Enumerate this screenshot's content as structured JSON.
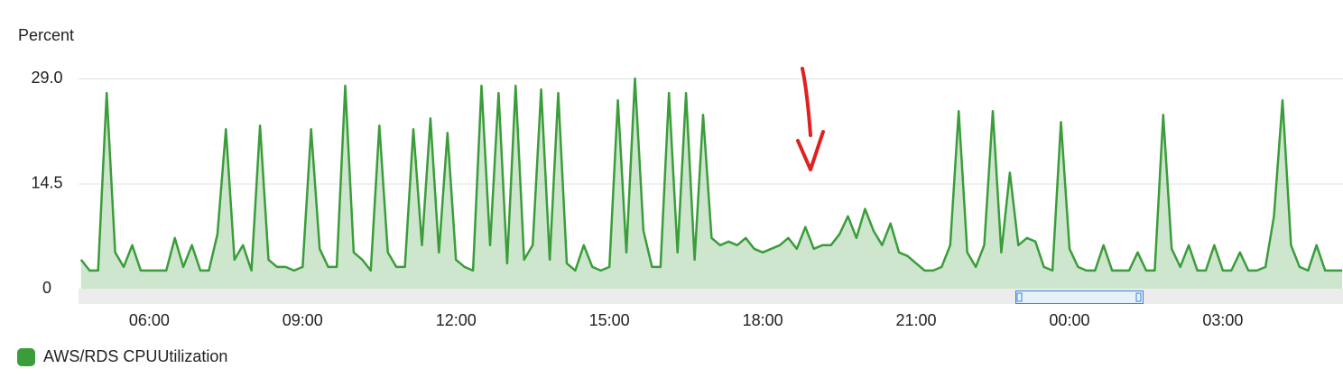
{
  "chart_data": {
    "type": "area",
    "y_label": "Percent",
    "xlim": [
      277,
      1761
    ],
    "xticks": [
      {
        "value": 360,
        "label": "06:00"
      },
      {
        "value": 540,
        "label": "09:00"
      },
      {
        "value": 720,
        "label": "12:00"
      },
      {
        "value": 900,
        "label": "15:00"
      },
      {
        "value": 1080,
        "label": "18:00"
      },
      {
        "value": 1260,
        "label": "21:00"
      },
      {
        "value": 1440,
        "label": "00:00"
      },
      {
        "value": 1620,
        "label": "03:00"
      }
    ],
    "ylim": [
      0,
      29
    ],
    "yticks": [
      0,
      14.5,
      {
        "value": 29,
        "label": "29.0"
      }
    ],
    "grid": true,
    "x": [
      280,
      290,
      300,
      310,
      320,
      330,
      340,
      350,
      360,
      370,
      380,
      390,
      400,
      410,
      420,
      430,
      440,
      450,
      460,
      470,
      480,
      490,
      500,
      510,
      520,
      530,
      540,
      550,
      560,
      570,
      580,
      590,
      600,
      610,
      620,
      630,
      640,
      650,
      660,
      670,
      680,
      690,
      700,
      710,
      720,
      730,
      740,
      750,
      760,
      770,
      780,
      790,
      800,
      810,
      820,
      830,
      840,
      850,
      860,
      870,
      880,
      890,
      900,
      910,
      920,
      930,
      940,
      950,
      960,
      970,
      980,
      990,
      1000,
      1010,
      1020,
      1030,
      1040,
      1050,
      1060,
      1070,
      1080,
      1090,
      1100,
      1110,
      1120,
      1130,
      1140,
      1150,
      1160,
      1170,
      1180,
      1190,
      1200,
      1210,
      1220,
      1230,
      1240,
      1250,
      1260,
      1270,
      1280,
      1290,
      1300,
      1310,
      1320,
      1330,
      1340,
      1350,
      1360,
      1370,
      1380,
      1390,
      1400,
      1410,
      1420,
      1430,
      1440,
      1450,
      1460,
      1470,
      1480,
      1490,
      1500,
      1510,
      1520,
      1530,
      1540,
      1550,
      1560,
      1570,
      1580,
      1590,
      1600,
      1610,
      1620,
      1630,
      1640,
      1650,
      1660,
      1670,
      1680,
      1690,
      1700,
      1710,
      1720,
      1730,
      1740,
      1750,
      1760
    ],
    "series": [
      {
        "name": "AWS/RDS CPUUtilization",
        "color": "#3a9d3a",
        "values": [
          4,
          2.5,
          2.5,
          27,
          5,
          3,
          6,
          2.5,
          2.5,
          2.5,
          2.5,
          7,
          3,
          6,
          2.5,
          2.5,
          7.5,
          22,
          4,
          6,
          2.5,
          22.5,
          4,
          3,
          3,
          2.5,
          3,
          22,
          5.5,
          3,
          3,
          28,
          5,
          4,
          2.5,
          22.5,
          5,
          3,
          3,
          22,
          6,
          23.5,
          5,
          21.5,
          4,
          3,
          2.5,
          28,
          6,
          27,
          3.5,
          28,
          4,
          6,
          27.5,
          4,
          27,
          3.5,
          2.5,
          6,
          3,
          2.5,
          3,
          26,
          5,
          29,
          8,
          3,
          3,
          27,
          5,
          27,
          4,
          24,
          7,
          6,
          6.5,
          6,
          7,
          5.5,
          5,
          5.5,
          6,
          7,
          5.5,
          8.5,
          5.5,
          6,
          6,
          7.5,
          10,
          7,
          11,
          8,
          6,
          9,
          5,
          4.5,
          3.5,
          2.5,
          2.5,
          3,
          6,
          24.5,
          5,
          3,
          6,
          24.5,
          5,
          16,
          6,
          7,
          6.5,
          3,
          2.5,
          23,
          5.5,
          3,
          2.5,
          2.5,
          6,
          2.5,
          2.5,
          2.5,
          5,
          2.5,
          2.5,
          24,
          5.5,
          3,
          6,
          2.5,
          2.5,
          6,
          2.5,
          2.5,
          5,
          2.5,
          2.5,
          3,
          10,
          26,
          6,
          3,
          2.5,
          6,
          2.5,
          2.5,
          2.5
        ]
      }
    ]
  }
}
